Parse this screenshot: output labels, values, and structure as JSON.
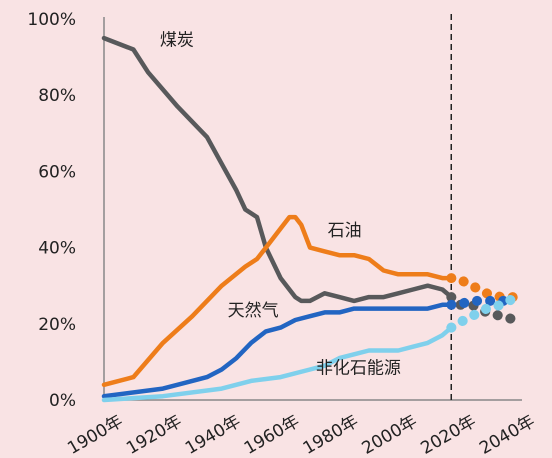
{
  "chart_data": {
    "type": "line",
    "title": "",
    "xlabel": "",
    "ylabel": "",
    "xlim": [
      1900,
      2040
    ],
    "ylim": [
      0,
      100
    ],
    "x_ticks": [
      "1900年",
      "1920年",
      "1940年",
      "1960年",
      "1980年",
      "2000年",
      "2020年",
      "2040年"
    ],
    "y_ticks": [
      "0%",
      "20%",
      "40%",
      "60%",
      "80%",
      "100%"
    ],
    "grid": false,
    "legend": "none",
    "projection_start": 2018,
    "series": [
      {
        "name": "煤炭",
        "color": "#58595b",
        "label_position": [
          1919,
          93
        ],
        "values": [
          [
            1900,
            95
          ],
          [
            1910,
            92
          ],
          [
            1915,
            86
          ],
          [
            1925,
            77
          ],
          [
            1935,
            69
          ],
          [
            1940,
            62
          ],
          [
            1945,
            55
          ],
          [
            1948,
            50
          ],
          [
            1952,
            48
          ],
          [
            1955,
            40
          ],
          [
            1960,
            32
          ],
          [
            1965,
            27
          ],
          [
            1967,
            26
          ],
          [
            1970,
            26
          ],
          [
            1975,
            28
          ],
          [
            1980,
            27
          ],
          [
            1985,
            26
          ],
          [
            1990,
            27
          ],
          [
            1995,
            27
          ],
          [
            2000,
            28
          ],
          [
            2005,
            29
          ],
          [
            2010,
            30
          ],
          [
            2015,
            29
          ],
          [
            2018,
            27
          ],
          [
            2020,
            25
          ],
          [
            2025,
            25
          ],
          [
            2030,
            23
          ],
          [
            2035,
            22
          ],
          [
            2040,
            21
          ]
        ]
      },
      {
        "name": "石油",
        "color": "#ee7d1a",
        "label_position": [
          1976,
          43
        ],
        "values": [
          [
            1900,
            4
          ],
          [
            1910,
            6
          ],
          [
            1920,
            15
          ],
          [
            1930,
            22
          ],
          [
            1940,
            30
          ],
          [
            1948,
            35
          ],
          [
            1952,
            37
          ],
          [
            1955,
            40
          ],
          [
            1960,
            45
          ],
          [
            1963,
            48
          ],
          [
            1965,
            48
          ],
          [
            1967,
            46
          ],
          [
            1970,
            40
          ],
          [
            1975,
            39
          ],
          [
            1980,
            38
          ],
          [
            1985,
            38
          ],
          [
            1990,
            37
          ],
          [
            1995,
            34
          ],
          [
            2000,
            33
          ],
          [
            2005,
            33
          ],
          [
            2010,
            33
          ],
          [
            2015,
            32
          ],
          [
            2018,
            32
          ],
          [
            2020,
            32
          ],
          [
            2025,
            30
          ],
          [
            2030,
            28
          ],
          [
            2035,
            27
          ],
          [
            2040,
            27
          ]
        ]
      },
      {
        "name": "天然气",
        "color": "#2265c2",
        "label_position": [
          1942,
          22
        ],
        "values": [
          [
            1900,
            1
          ],
          [
            1920,
            3
          ],
          [
            1935,
            6
          ],
          [
            1940,
            8
          ],
          [
            1945,
            11
          ],
          [
            1950,
            15
          ],
          [
            1955,
            18
          ],
          [
            1960,
            19
          ],
          [
            1965,
            21
          ],
          [
            1970,
            22
          ],
          [
            1975,
            23
          ],
          [
            1980,
            23
          ],
          [
            1985,
            24
          ],
          [
            1990,
            24
          ],
          [
            1995,
            24
          ],
          [
            2000,
            24
          ],
          [
            2005,
            24
          ],
          [
            2010,
            24
          ],
          [
            2015,
            25
          ],
          [
            2018,
            25
          ],
          [
            2020,
            25
          ],
          [
            2025,
            26
          ],
          [
            2030,
            26
          ],
          [
            2035,
            26
          ],
          [
            2040,
            26
          ]
        ]
      },
      {
        "name": "非化石能源",
        "color": "#7fd0ec",
        "label_position": [
          1972,
          7
        ],
        "values": [
          [
            1900,
            0
          ],
          [
            1920,
            1
          ],
          [
            1940,
            3
          ],
          [
            1950,
            5
          ],
          [
            1960,
            6
          ],
          [
            1970,
            8
          ],
          [
            1975,
            9
          ],
          [
            1980,
            11
          ],
          [
            1985,
            12
          ],
          [
            1990,
            13
          ],
          [
            1995,
            13
          ],
          [
            2000,
            13
          ],
          [
            2005,
            14
          ],
          [
            2010,
            15
          ],
          [
            2015,
            17
          ],
          [
            2018,
            19
          ],
          [
            2020,
            20
          ],
          [
            2025,
            22
          ],
          [
            2030,
            24
          ],
          [
            2035,
            25
          ],
          [
            2040,
            27
          ]
        ]
      }
    ]
  }
}
